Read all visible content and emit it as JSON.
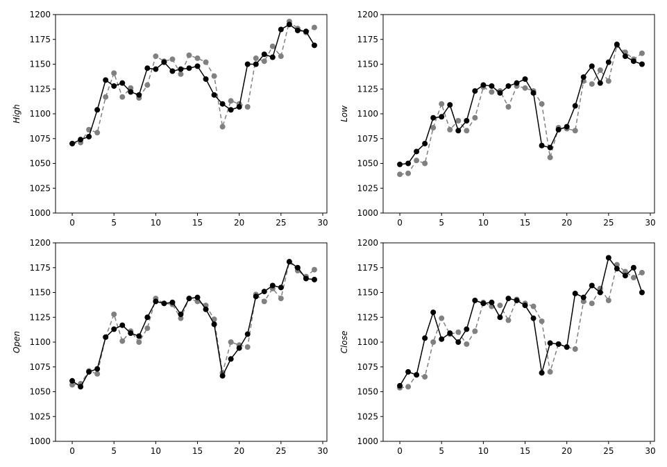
{
  "figure": {
    "background": "#ffffff"
  },
  "series_styles": [
    {
      "color": "#000000",
      "dash": ""
    },
    {
      "color": "#808080",
      "dash": "6,4"
    }
  ],
  "chart_data": [
    {
      "type": "line",
      "ylabel": "High",
      "xlim": [
        -2,
        30.5
      ],
      "ylim": [
        1000,
        1200
      ],
      "xticks": [
        0,
        5,
        10,
        15,
        20,
        25,
        30
      ],
      "yticks": [
        1000,
        1025,
        1050,
        1075,
        1100,
        1125,
        1150,
        1175,
        1200
      ],
      "x": [
        0,
        1,
        2,
        3,
        4,
        5,
        6,
        7,
        8,
        9,
        10,
        11,
        12,
        13,
        14,
        15,
        16,
        17,
        18,
        19,
        20,
        21,
        22,
        23,
        24,
        25,
        26,
        27,
        28,
        29
      ],
      "series": [
        {
          "values": [
            1070,
            1074,
            1077,
            1104,
            1134,
            1128,
            1131,
            1122,
            1119,
            1146,
            1145,
            1152,
            1143,
            1145,
            1146,
            1148,
            1135,
            1119,
            1110,
            1104,
            1107,
            1150,
            1150,
            1160,
            1157,
            1185,
            1190,
            1184,
            1183,
            1169
          ]
        },
        {
          "values": [
            1070,
            1071,
            1084,
            1081,
            1117,
            1141,
            1117,
            1126,
            1116,
            1129,
            1158,
            1153,
            1155,
            1140,
            1159,
            1156,
            1152,
            1138,
            1087,
            1113,
            1110,
            1107,
            1156,
            1153,
            1168,
            1158,
            1193,
            1186,
            1182,
            1187
          ]
        }
      ]
    },
    {
      "type": "line",
      "ylabel": "Low",
      "xlim": [
        -2,
        30.5
      ],
      "ylim": [
        1000,
        1200
      ],
      "xticks": [
        0,
        5,
        10,
        15,
        20,
        25,
        30
      ],
      "yticks": [
        1000,
        1025,
        1050,
        1075,
        1100,
        1125,
        1150,
        1175,
        1200
      ],
      "x": [
        0,
        1,
        2,
        3,
        4,
        5,
        6,
        7,
        8,
        9,
        10,
        11,
        12,
        13,
        14,
        15,
        16,
        17,
        18,
        19,
        20,
        21,
        22,
        23,
        24,
        25,
        26,
        27,
        28,
        29
      ],
      "series": [
        {
          "values": [
            1049,
            1050,
            1062,
            1070,
            1096,
            1097,
            1109,
            1083,
            1093,
            1123,
            1129,
            1128,
            1121,
            1128,
            1131,
            1135,
            1121,
            1068,
            1066,
            1084,
            1087,
            1108,
            1137,
            1148,
            1131,
            1152,
            1170,
            1158,
            1153,
            1150
          ]
        },
        {
          "values": [
            1039,
            1040,
            1053,
            1050,
            1086,
            1110,
            1084,
            1093,
            1083,
            1096,
            1127,
            1122,
            1123,
            1107,
            1128,
            1126,
            1123,
            1110,
            1056,
            1086,
            1085,
            1083,
            1133,
            1130,
            1144,
            1133,
            1169,
            1162,
            1155,
            1161
          ]
        }
      ]
    },
    {
      "type": "line",
      "ylabel": "Open",
      "xlim": [
        -2,
        30.5
      ],
      "ylim": [
        1000,
        1200
      ],
      "xticks": [
        0,
        5,
        10,
        15,
        20,
        25,
        30
      ],
      "yticks": [
        1000,
        1025,
        1050,
        1075,
        1100,
        1125,
        1150,
        1175,
        1200
      ],
      "x": [
        0,
        1,
        2,
        3,
        4,
        5,
        6,
        7,
        8,
        9,
        10,
        11,
        12,
        13,
        14,
        15,
        16,
        17,
        18,
        19,
        20,
        21,
        22,
        23,
        24,
        25,
        26,
        27,
        28,
        29
      ],
      "series": [
        {
          "values": [
            1061,
            1055,
            1070,
            1073,
            1105,
            1113,
            1117,
            1109,
            1106,
            1125,
            1141,
            1139,
            1140,
            1128,
            1144,
            1145,
            1133,
            1118,
            1066,
            1083,
            1094,
            1108,
            1146,
            1151,
            1157,
            1155,
            1181,
            1175,
            1164,
            1163
          ]
        },
        {
          "values": [
            1057,
            1058,
            1071,
            1068,
            1105,
            1128,
            1101,
            1111,
            1100,
            1114,
            1144,
            1139,
            1138,
            1124,
            1144,
            1141,
            1137,
            1123,
            1069,
            1100,
            1097,
            1095,
            1148,
            1141,
            1154,
            1144,
            1181,
            1172,
            1166,
            1173
          ]
        }
      ]
    },
    {
      "type": "line",
      "ylabel": "Close",
      "xlim": [
        -2,
        30.5
      ],
      "ylim": [
        1000,
        1200
      ],
      "xticks": [
        0,
        5,
        10,
        15,
        20,
        25,
        30
      ],
      "yticks": [
        1000,
        1025,
        1050,
        1075,
        1100,
        1125,
        1150,
        1175,
        1200
      ],
      "x": [
        0,
        1,
        2,
        3,
        4,
        5,
        6,
        7,
        8,
        9,
        10,
        11,
        12,
        13,
        14,
        15,
        16,
        17,
        18,
        19,
        20,
        21,
        22,
        23,
        24,
        25,
        26,
        27,
        28,
        29
      ],
      "series": [
        {
          "values": [
            1056,
            1070,
            1067,
            1104,
            1130,
            1103,
            1109,
            1100,
            1113,
            1142,
            1139,
            1140,
            1125,
            1144,
            1142,
            1137,
            1124,
            1069,
            1099,
            1098,
            1095,
            1149,
            1145,
            1157,
            1150,
            1185,
            1174,
            1167,
            1175,
            1150
          ]
        },
        {
          "values": [
            1054,
            1055,
            1067,
            1065,
            1100,
            1124,
            1108,
            1110,
            1098,
            1111,
            1140,
            1136,
            1137,
            1122,
            1143,
            1139,
            1136,
            1121,
            1070,
            1098,
            1095,
            1093,
            1141,
            1139,
            1154,
            1142,
            1178,
            1171,
            1165,
            1170
          ]
        }
      ]
    }
  ]
}
